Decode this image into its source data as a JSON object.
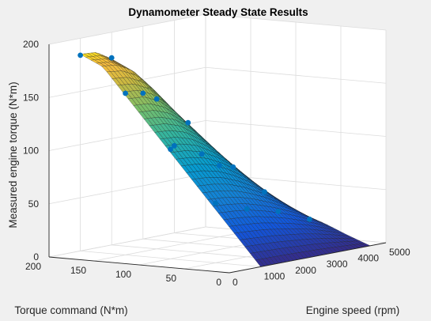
{
  "colors": {
    "figure_bg": "#f0f0f0",
    "axes_bg": "#ffffff",
    "grid": "#dcdcdc",
    "marker": "#0072bd",
    "mesh_edge": "#1a1a1a"
  },
  "chart_data": {
    "type": "surface3d",
    "title": "Dynamometer Steady State Results",
    "xlabel": "Engine speed (rpm)",
    "ylabel": "Torque command (N*m)",
    "zlabel": "Measured engine torque (N*m)",
    "xlim": [
      0,
      5000
    ],
    "ylim": [
      0,
      200
    ],
    "zlim": [
      0,
      200
    ],
    "xticks": [
      0,
      1000,
      2000,
      3000,
      4000,
      5000
    ],
    "yticks": [
      0,
      50,
      100,
      150,
      200
    ],
    "zticks": [
      0,
      50,
      100,
      150,
      200
    ],
    "colormap": "parula",
    "grid": true,
    "surface": {
      "speed_rpm": [
        1000,
        1500,
        2000,
        2500,
        3000,
        3500,
        4000,
        4500
      ],
      "torque_cmd_nm": [
        0,
        25,
        50,
        75,
        100,
        125,
        150,
        175,
        200
      ],
      "measured_torque_nm": [
        [
          0,
          0,
          0,
          0,
          0,
          0,
          0,
          0
        ],
        [
          25,
          24,
          23,
          21,
          19,
          16,
          12,
          8
        ],
        [
          50,
          49,
          47,
          43,
          38,
          32,
          25,
          17
        ],
        [
          75,
          74,
          71,
          65,
          57,
          47,
          36,
          24
        ],
        [
          100,
          99,
          95,
          87,
          76,
          62,
          47,
          31
        ],
        [
          125,
          124,
          119,
          108,
          94,
          77,
          58,
          38
        ],
        [
          150,
          149,
          142,
          129,
          112,
          91,
          68,
          45
        ],
        [
          175,
          173,
          165,
          149,
          128,
          104,
          77,
          51
        ],
        [
          185,
          184,
          175,
          158,
          136,
          110,
          81,
          54
        ]
      ]
    },
    "scatter": [
      {
        "speed_rpm": 1000,
        "torque_cmd_nm": 50,
        "measured_torque_nm": 56
      },
      {
        "speed_rpm": 1000,
        "torque_cmd_nm": 100,
        "measured_torque_nm": 103
      },
      {
        "speed_rpm": 1000,
        "torque_cmd_nm": 150,
        "measured_torque_nm": 152
      },
      {
        "speed_rpm": 1000,
        "torque_cmd_nm": 200,
        "measured_torque_nm": 184
      },
      {
        "speed_rpm": 2000,
        "torque_cmd_nm": 50,
        "measured_torque_nm": 45
      },
      {
        "speed_rpm": 2000,
        "torque_cmd_nm": 100,
        "measured_torque_nm": 93
      },
      {
        "speed_rpm": 2000,
        "torque_cmd_nm": 150,
        "measured_torque_nm": 141
      },
      {
        "speed_rpm": 2000,
        "torque_cmd_nm": 200,
        "measured_torque_nm": 176
      },
      {
        "speed_rpm": 3000,
        "torque_cmd_nm": 50,
        "measured_torque_nm": 37
      },
      {
        "speed_rpm": 3000,
        "torque_cmd_nm": 100,
        "measured_torque_nm": 75
      },
      {
        "speed_rpm": 3000,
        "torque_cmd_nm": 150,
        "measured_torque_nm": 113
      },
      {
        "speed_rpm": 3000,
        "torque_cmd_nm": 200,
        "measured_torque_nm": 137
      },
      {
        "speed_rpm": 4000,
        "torque_cmd_nm": 50,
        "measured_torque_nm": 24
      },
      {
        "speed_rpm": 4000,
        "torque_cmd_nm": 100,
        "measured_torque_nm": 46
      },
      {
        "speed_rpm": 4000,
        "torque_cmd_nm": 150,
        "measured_torque_nm": 67
      },
      {
        "speed_rpm": 4000,
        "torque_cmd_nm": 200,
        "measured_torque_nm": 82
      }
    ]
  }
}
